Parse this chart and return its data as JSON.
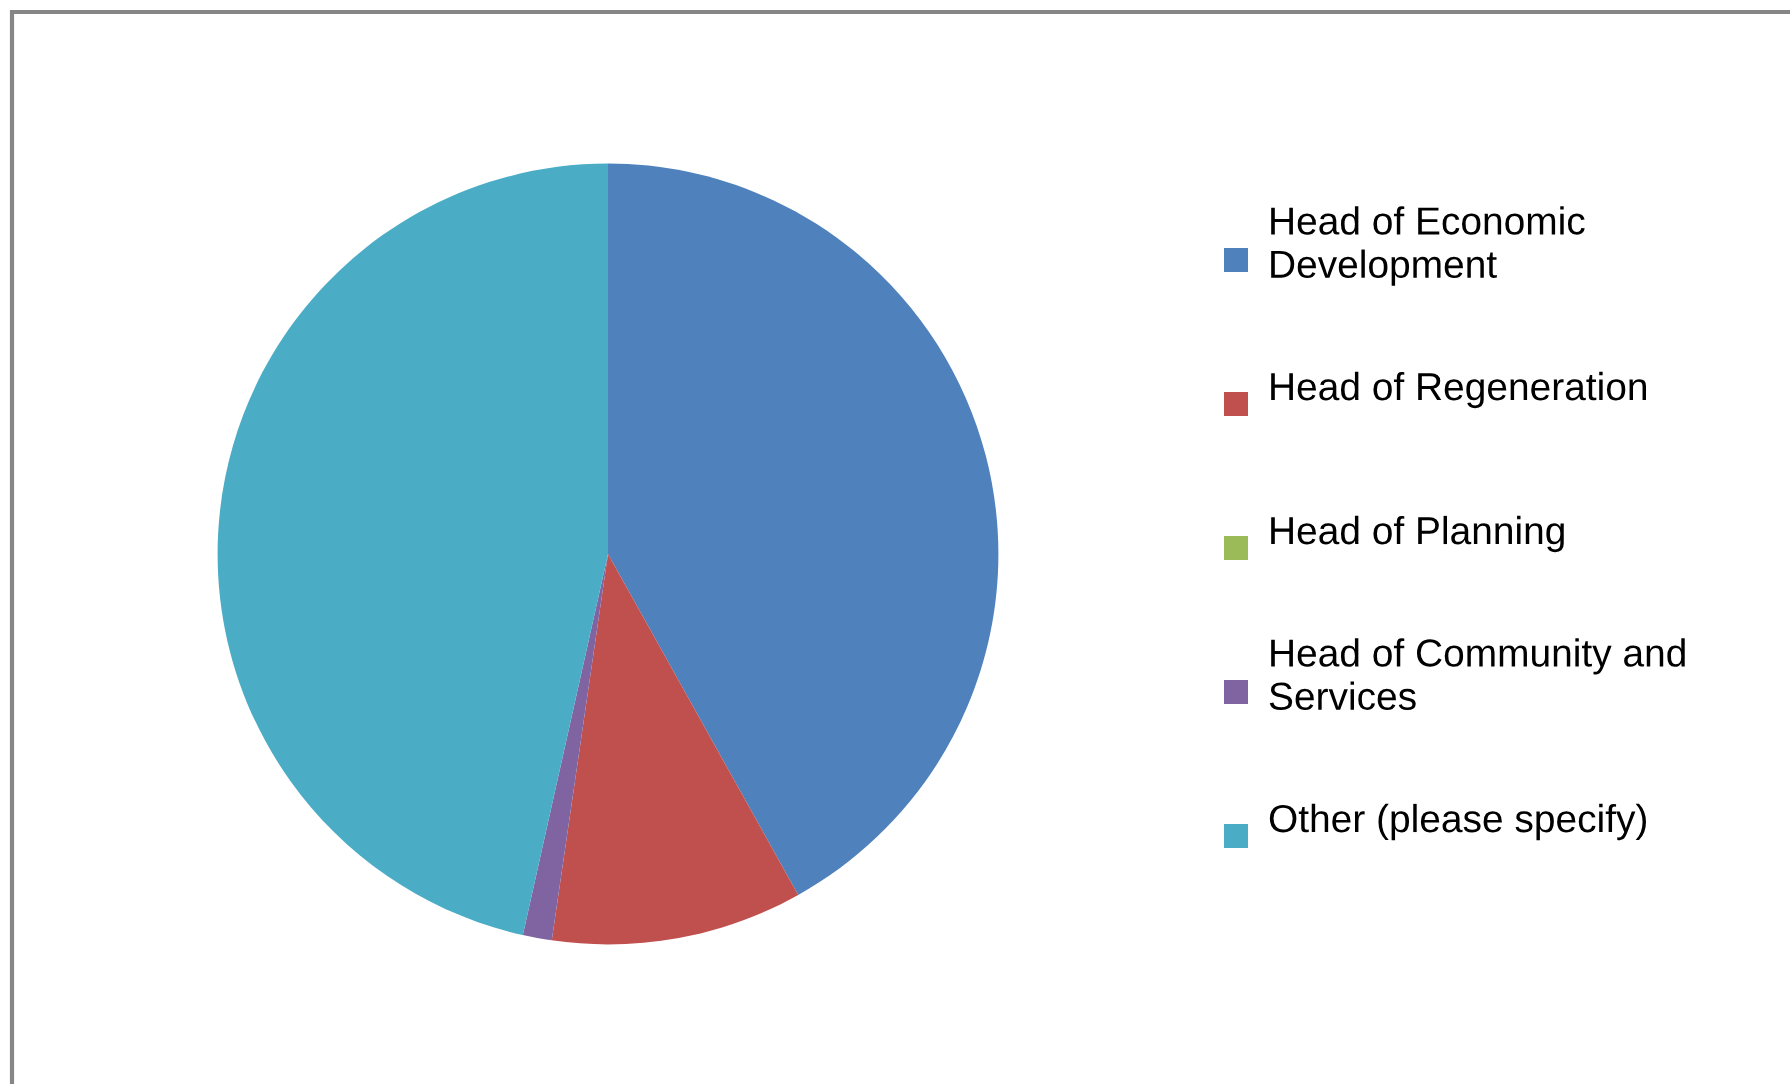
{
  "chart_data": {
    "type": "pie",
    "categories": [
      "Head of Economic Development",
      "Head of Regeneration",
      "Head of Planning",
      "Head of Community and Services",
      "Other (please specify)"
    ],
    "values": [
      41.9,
      10.4,
      0,
      1.2,
      46.5
    ],
    "colors": [
      "#4f81bd",
      "#c0504d",
      "#9bbb59",
      "#8064a2",
      "#4bacc6"
    ],
    "legend": "right"
  }
}
